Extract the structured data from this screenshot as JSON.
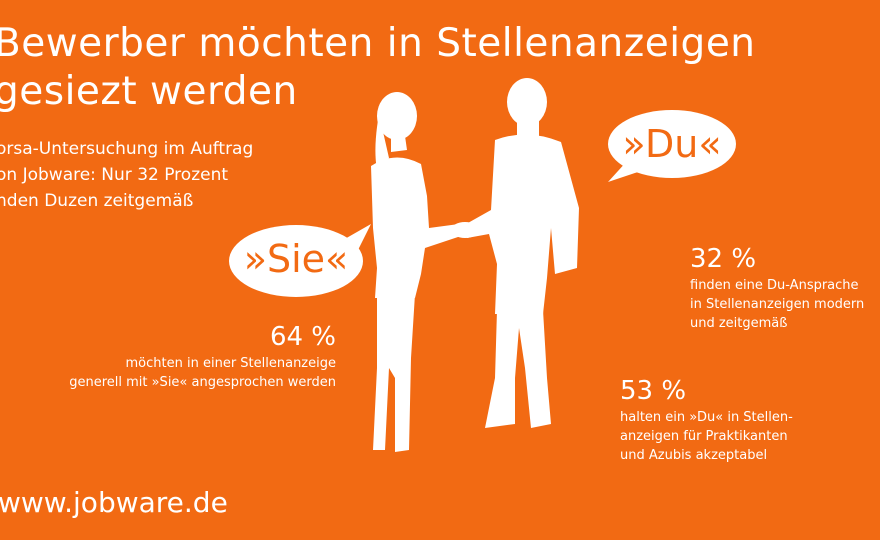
{
  "header": {
    "title_lines": [
      "Bewerber möchten in Stellenanzeigen",
      "gesiezt werden"
    ],
    "subtitle_lines": [
      "orsa-Untersuchung im Auftrag",
      "on Jobware: Nur 32 Prozent",
      "nden Duzen zeitgemäß"
    ]
  },
  "bubbles": {
    "sie": "»Sie«",
    "du": "»Du«"
  },
  "stats": {
    "sie": {
      "value": "64 %",
      "lines": [
        "möchten in einer Stellenanzeige",
        "generell mit »Sie« angesprochen werden"
      ]
    },
    "du_modern": {
      "value": "32 %",
      "lines": [
        "finden eine Du-Ansprache",
        "in Stellenanzeigen modern",
        "und zeitgemäß"
      ]
    },
    "du_interns": {
      "value": "53 %",
      "lines": [
        "halten ein »Du« in Stellen-",
        "anzeigen für Praktikanten",
        "und Azubis akzeptabel"
      ]
    }
  },
  "footer": {
    "url": "www.jobware.de"
  },
  "colors": {
    "background": "#f26a13",
    "foreground": "#ffffff"
  }
}
